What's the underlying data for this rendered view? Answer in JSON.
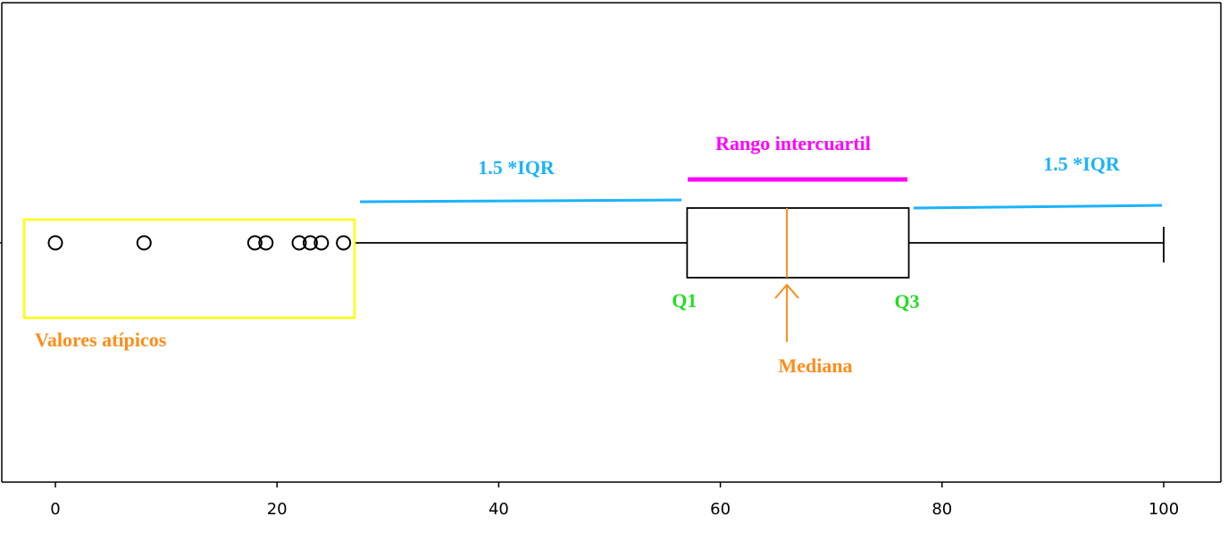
{
  "chart_data": {
    "type": "boxplot",
    "orientation": "horizontal",
    "title": "",
    "xlabel": "",
    "ylabel": "",
    "xlim": [
      -5,
      105
    ],
    "xticks": [
      0,
      20,
      40,
      60,
      80,
      100
    ],
    "grid": false,
    "box": {
      "whisker_low": 27,
      "q1": 57,
      "median": 66,
      "q3": 77,
      "whisker_high": 100,
      "outliers": [
        0,
        8,
        18,
        19,
        22,
        23,
        24,
        26
      ]
    },
    "annotations": {
      "iqr_label": "Rango intercuartil",
      "iqr_left_label": "1.5 *IQR",
      "iqr_right_label": "1.5 *IQR",
      "q1_label": "Q1",
      "q3_label": "Q3",
      "median_label": "Mediana",
      "outliers_label": "Valores atípicos"
    }
  },
  "colors": {
    "median_line": "#ff8c1a",
    "iqr_bar": "#ff00ff",
    "iqr_span": "#1ab2ff",
    "quartile_label": "#22dd22",
    "outlier_box": "#ffff00",
    "outlier_label": "#ff8c1a"
  }
}
